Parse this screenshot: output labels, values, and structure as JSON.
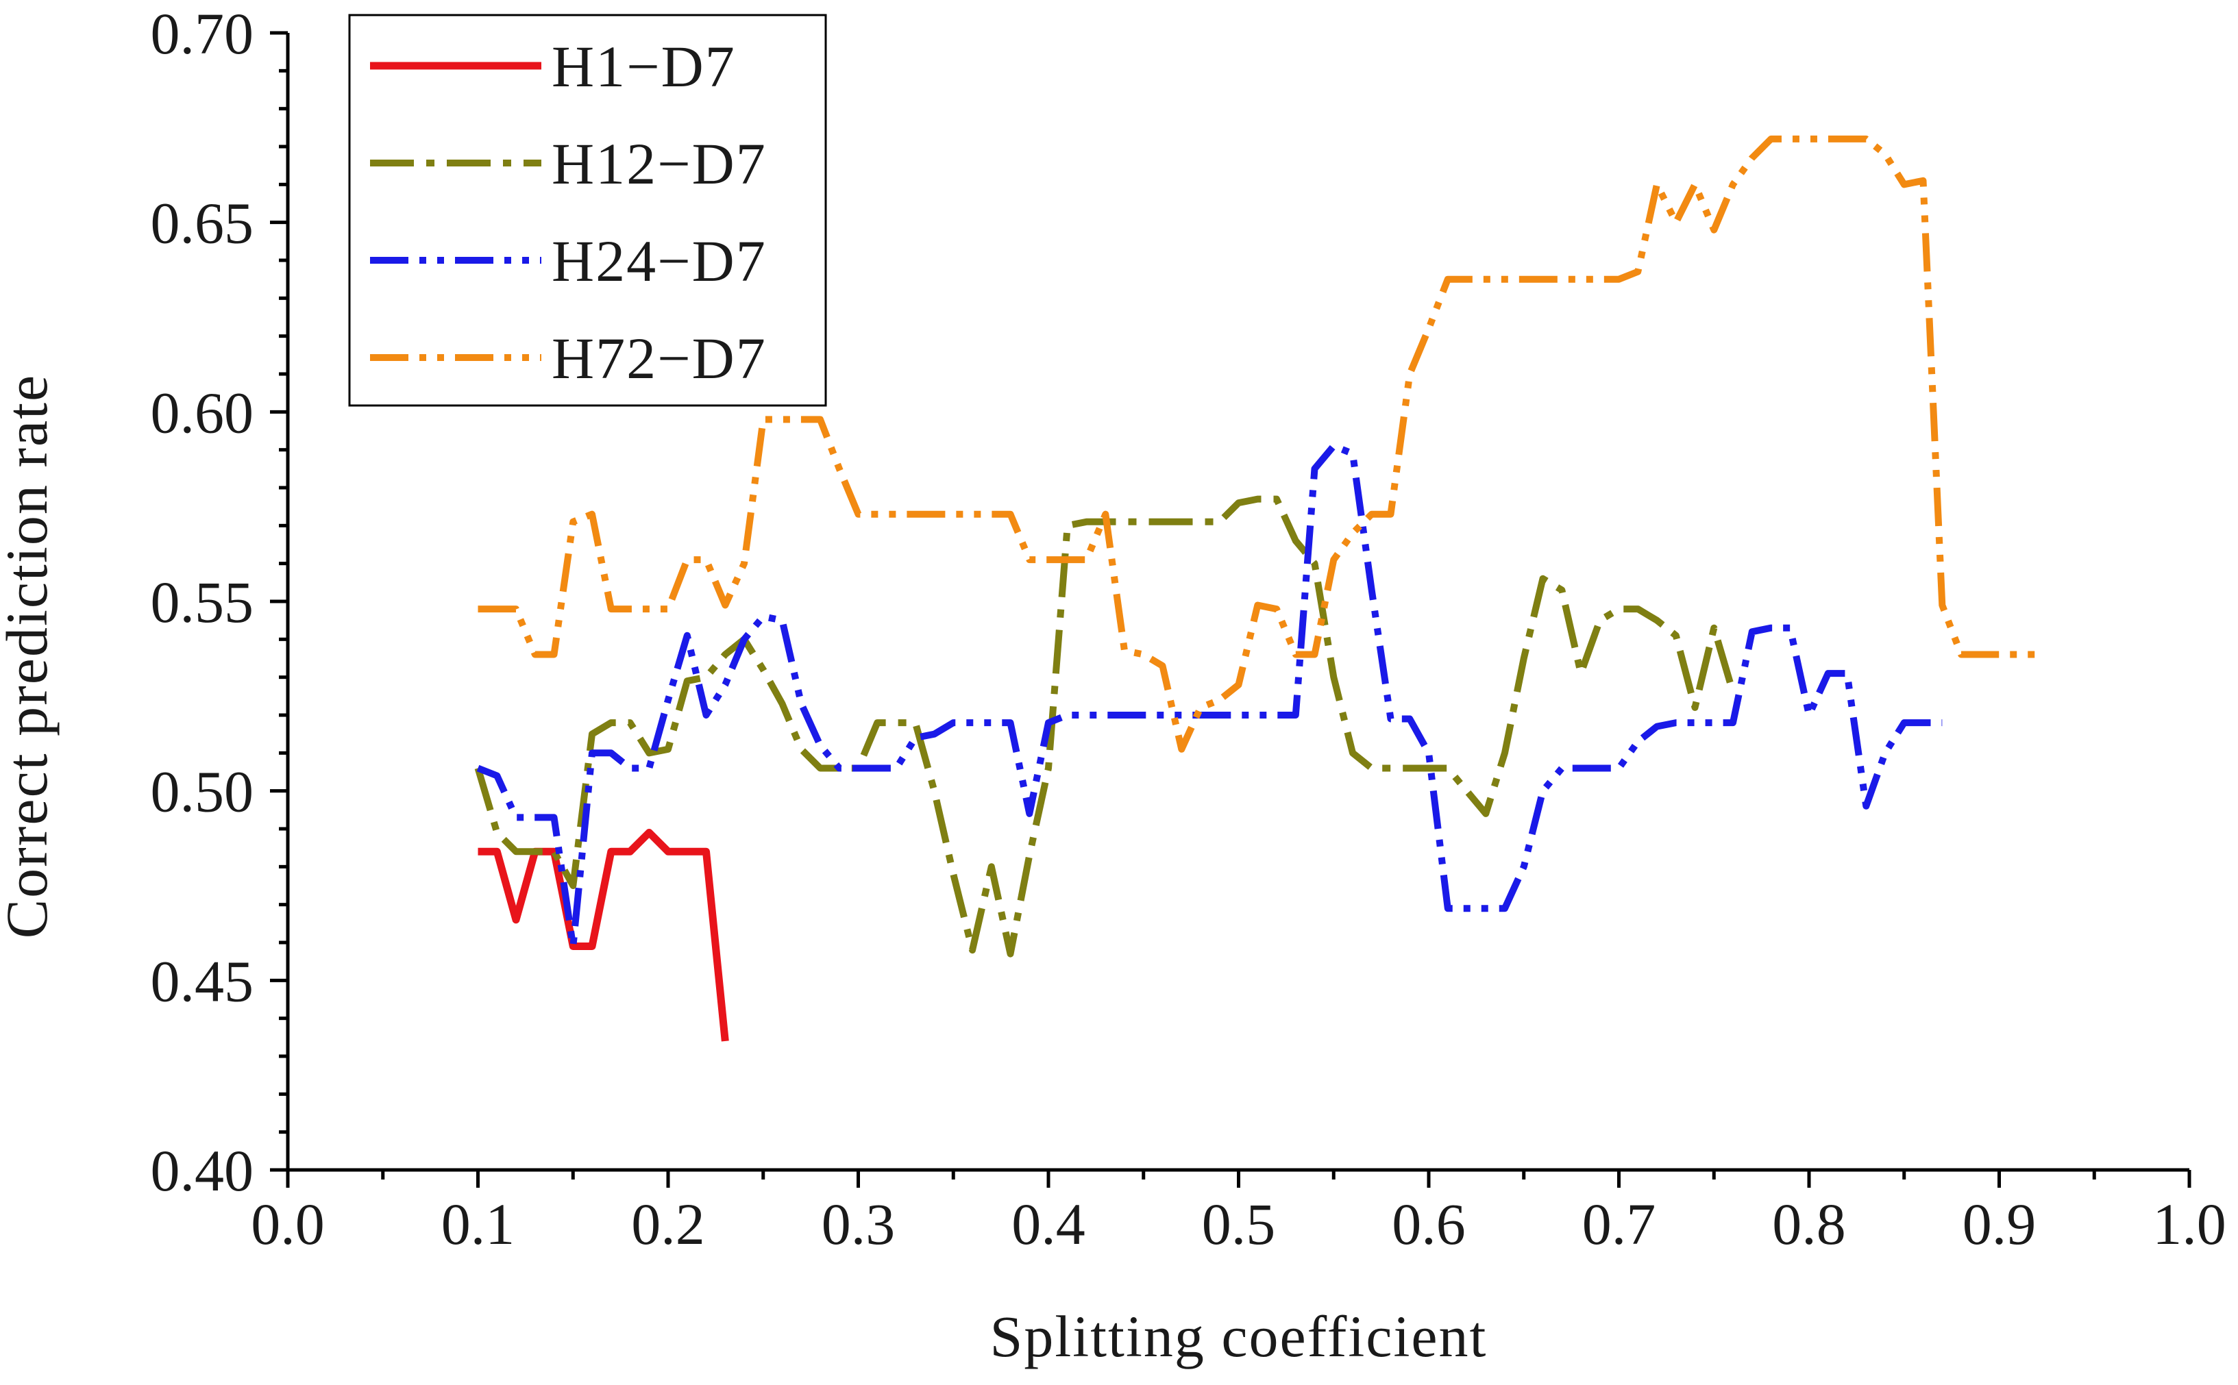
{
  "chart_data": {
    "type": "line",
    "title": "",
    "xlabel": "Splitting coefficient",
    "ylabel": "Correct prediction rate",
    "xlim": [
      0.0,
      1.0
    ],
    "ylim": [
      0.4,
      0.7
    ],
    "x_ticks": [
      "0.0",
      "0.1",
      "0.2",
      "0.3",
      "0.4",
      "0.5",
      "0.6",
      "0.7",
      "0.8",
      "0.9",
      "1.0"
    ],
    "y_ticks": [
      "0.40",
      "0.45",
      "0.50",
      "0.55",
      "0.60",
      "0.65",
      "0.70"
    ],
    "grid": false,
    "legend_position": "top-left",
    "series": [
      {
        "name": "H1−D7",
        "color": "#e8141b",
        "style": "solid",
        "x": [
          0.1,
          0.11,
          0.12,
          0.13,
          0.14,
          0.15,
          0.16,
          0.17,
          0.18,
          0.19,
          0.2,
          0.21,
          0.22,
          0.23
        ],
        "y": [
          0.484,
          0.484,
          0.466,
          0.484,
          0.484,
          0.459,
          0.459,
          0.484,
          0.484,
          0.489,
          0.484,
          0.484,
          0.484,
          0.434
        ]
      },
      {
        "name": "H12−D7",
        "color": "#7f7f12",
        "style": "dashdot",
        "x": [
          0.1,
          0.11,
          0.12,
          0.13,
          0.14,
          0.15,
          0.16,
          0.17,
          0.18,
          0.19,
          0.2,
          0.21,
          0.22,
          0.23,
          0.24,
          0.25,
          0.26,
          0.27,
          0.28,
          0.29,
          0.3,
          0.31,
          0.32,
          0.33,
          0.34,
          0.35,
          0.36,
          0.37,
          0.38,
          0.39,
          0.4,
          0.41,
          0.42,
          0.43,
          0.44,
          0.45,
          0.46,
          0.47,
          0.48,
          0.49,
          0.5,
          0.51,
          0.52,
          0.53,
          0.54,
          0.55,
          0.56,
          0.57,
          0.58,
          0.59,
          0.6,
          0.61,
          0.62,
          0.63,
          0.64,
          0.65,
          0.66,
          0.67,
          0.68,
          0.69,
          0.7,
          0.71,
          0.72,
          0.73,
          0.74,
          0.75,
          0.76
        ],
        "y": [
          0.506,
          0.489,
          0.484,
          0.484,
          0.484,
          0.475,
          0.515,
          0.518,
          0.518,
          0.51,
          0.511,
          0.529,
          0.53,
          0.536,
          0.54,
          0.532,
          0.523,
          0.511,
          0.506,
          0.506,
          0.506,
          0.518,
          0.518,
          0.518,
          0.5,
          0.478,
          0.458,
          0.48,
          0.457,
          0.483,
          0.506,
          0.57,
          0.571,
          0.571,
          0.571,
          0.571,
          0.571,
          0.571,
          0.571,
          0.571,
          0.576,
          0.577,
          0.577,
          0.566,
          0.56,
          0.53,
          0.51,
          0.506,
          0.506,
          0.506,
          0.506,
          0.506,
          0.5,
          0.494,
          0.51,
          0.535,
          0.556,
          0.553,
          0.531,
          0.545,
          0.548,
          0.548,
          0.545,
          0.541,
          0.522,
          0.543,
          0.526
        ]
      },
      {
        "name": "H24−D7",
        "color": "#1a1ae8",
        "style": "dashdotdot",
        "x": [
          0.1,
          0.11,
          0.12,
          0.13,
          0.14,
          0.15,
          0.16,
          0.17,
          0.18,
          0.19,
          0.2,
          0.21,
          0.22,
          0.23,
          0.24,
          0.25,
          0.26,
          0.27,
          0.28,
          0.29,
          0.3,
          0.31,
          0.32,
          0.33,
          0.34,
          0.35,
          0.36,
          0.37,
          0.38,
          0.39,
          0.4,
          0.41,
          0.42,
          0.43,
          0.44,
          0.45,
          0.46,
          0.47,
          0.48,
          0.49,
          0.5,
          0.51,
          0.52,
          0.53,
          0.54,
          0.55,
          0.56,
          0.57,
          0.58,
          0.59,
          0.6,
          0.61,
          0.62,
          0.63,
          0.64,
          0.65,
          0.66,
          0.67,
          0.68,
          0.69,
          0.7,
          0.71,
          0.72,
          0.73,
          0.74,
          0.75,
          0.76,
          0.77,
          0.78,
          0.79,
          0.8,
          0.81,
          0.82,
          0.83,
          0.84,
          0.85,
          0.86,
          0.87
        ],
        "y": [
          0.506,
          0.504,
          0.493,
          0.493,
          0.493,
          0.459,
          0.51,
          0.51,
          0.506,
          0.506,
          0.524,
          0.541,
          0.52,
          0.528,
          0.54,
          0.546,
          0.545,
          0.523,
          0.512,
          0.506,
          0.506,
          0.506,
          0.506,
          0.514,
          0.515,
          0.518,
          0.518,
          0.518,
          0.518,
          0.494,
          0.518,
          0.52,
          0.52,
          0.52,
          0.52,
          0.52,
          0.52,
          0.52,
          0.52,
          0.52,
          0.52,
          0.52,
          0.52,
          0.52,
          0.585,
          0.591,
          0.589,
          0.553,
          0.519,
          0.519,
          0.51,
          0.469,
          0.469,
          0.469,
          0.469,
          0.48,
          0.5,
          0.506,
          0.506,
          0.506,
          0.506,
          0.513,
          0.517,
          0.518,
          0.518,
          0.518,
          0.518,
          0.542,
          0.543,
          0.543,
          0.52,
          0.531,
          0.531,
          0.496,
          0.51,
          0.518,
          0.518,
          0.518
        ]
      },
      {
        "name": "H72−D7",
        "color": "#f28a12",
        "style": "dashdotdot",
        "x": [
          0.1,
          0.11,
          0.12,
          0.13,
          0.14,
          0.15,
          0.16,
          0.17,
          0.18,
          0.19,
          0.2,
          0.21,
          0.22,
          0.23,
          0.24,
          0.25,
          0.26,
          0.27,
          0.28,
          0.29,
          0.3,
          0.31,
          0.32,
          0.33,
          0.34,
          0.35,
          0.36,
          0.37,
          0.38,
          0.39,
          0.4,
          0.41,
          0.42,
          0.43,
          0.44,
          0.45,
          0.46,
          0.47,
          0.48,
          0.49,
          0.5,
          0.51,
          0.52,
          0.53,
          0.54,
          0.55,
          0.56,
          0.57,
          0.58,
          0.59,
          0.6,
          0.61,
          0.62,
          0.63,
          0.64,
          0.65,
          0.66,
          0.67,
          0.68,
          0.69,
          0.7,
          0.71,
          0.72,
          0.73,
          0.74,
          0.75,
          0.76,
          0.77,
          0.78,
          0.79,
          0.8,
          0.81,
          0.82,
          0.83,
          0.84,
          0.85,
          0.86,
          0.87,
          0.88,
          0.89,
          0.9,
          0.91,
          0.92
        ],
        "y": [
          0.548,
          0.548,
          0.548,
          0.536,
          0.536,
          0.571,
          0.573,
          0.548,
          0.548,
          0.548,
          0.548,
          0.561,
          0.561,
          0.549,
          0.56,
          0.598,
          0.598,
          0.598,
          0.598,
          0.585,
          0.573,
          0.573,
          0.573,
          0.573,
          0.573,
          0.573,
          0.573,
          0.573,
          0.573,
          0.561,
          0.561,
          0.561,
          0.561,
          0.573,
          0.537,
          0.536,
          0.533,
          0.511,
          0.522,
          0.524,
          0.528,
          0.549,
          0.548,
          0.536,
          0.536,
          0.561,
          0.568,
          0.573,
          0.573,
          0.61,
          0.622,
          0.635,
          0.635,
          0.635,
          0.635,
          0.635,
          0.635,
          0.635,
          0.635,
          0.635,
          0.635,
          0.637,
          0.66,
          0.65,
          0.66,
          0.648,
          0.66,
          0.667,
          0.672,
          0.672,
          0.672,
          0.672,
          0.672,
          0.672,
          0.668,
          0.66,
          0.661,
          0.549,
          0.536,
          0.536,
          0.536,
          0.536,
          0.536
        ]
      }
    ]
  }
}
